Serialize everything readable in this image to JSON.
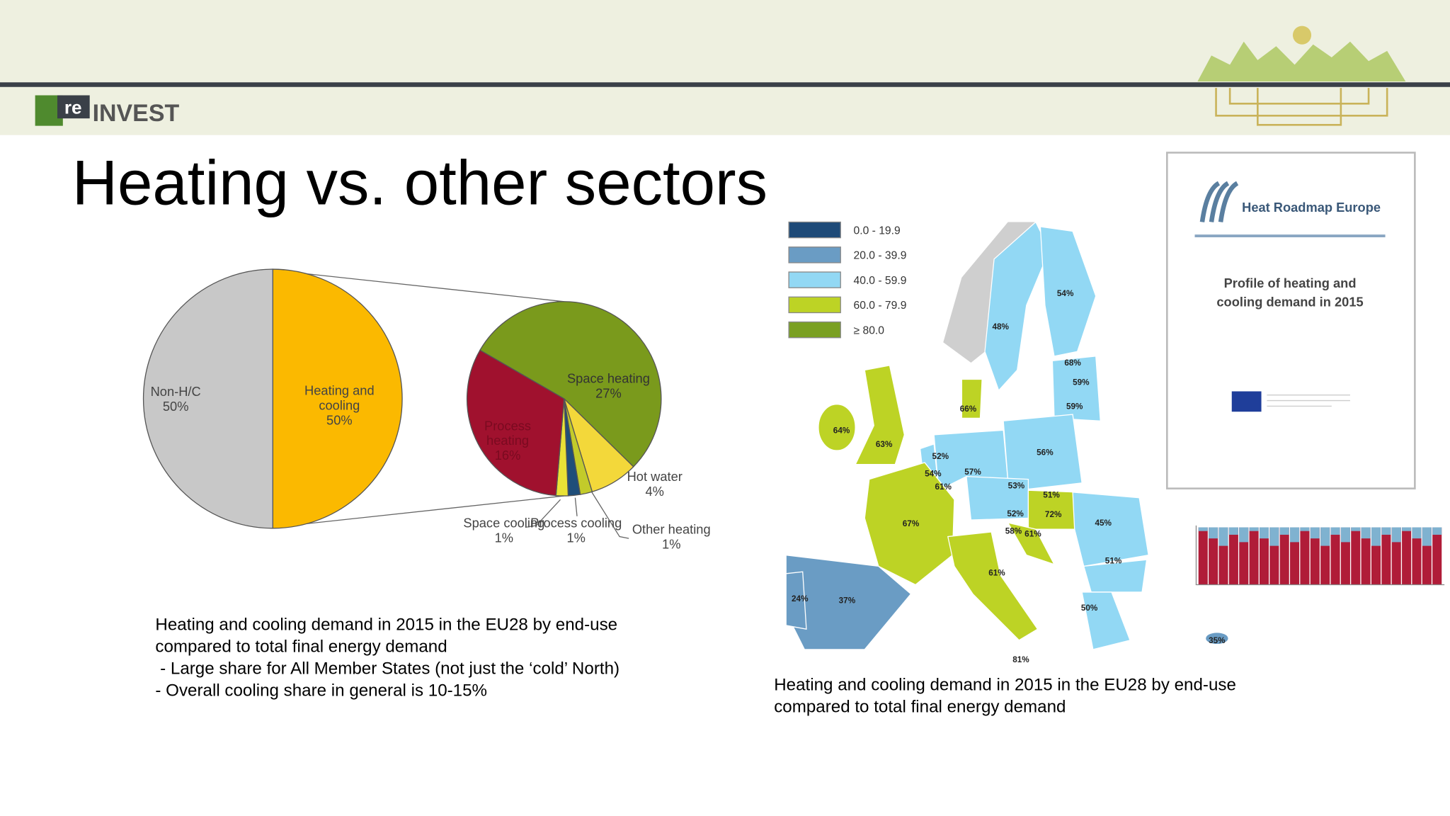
{
  "header": {
    "logo_prefix": "re",
    "logo_name": "INVEST"
  },
  "title": "Heating vs. other sectors",
  "chart_data": [
    {
      "type": "pie",
      "categories": [
        "Heating and cooling",
        "Non-H/C"
      ],
      "values": [
        50,
        50
      ],
      "value_labels": [
        "50%",
        "50%"
      ],
      "colors": [
        "#fbb900",
        "#c8c8c8"
      ]
    },
    {
      "type": "pie",
      "categories": [
        "Space heating",
        "Hot water",
        "Other heating",
        "Process cooling",
        "Space cooling",
        "Process heating"
      ],
      "values": [
        27,
        4,
        1,
        1,
        1,
        16
      ],
      "value_labels": [
        "27%",
        "4%",
        "1%",
        "1%",
        "1%",
        "16%"
      ],
      "colors": [
        "#7a9a1c",
        "#f3d83a",
        "#c3cb2a",
        "#1f4e79",
        "#e9e236",
        "#a0112e"
      ]
    }
  ],
  "caption_left": [
    "Heating and cooling demand in 2015 in the EU28 by end-use",
    "compared to total final energy demand",
    " - Large share for All Member States (not just the ‘cold’ North)",
    "- Overall cooling share in general is 10-15%"
  ],
  "caption_right": [
    "Heating and cooling demand in 2015 in the EU28 by end-use",
    "compared to total final energy demand"
  ],
  "map": {
    "legend": [
      {
        "label": "0.0 - 19.9",
        "color": "#1e4a78"
      },
      {
        "label": "20.0 - 39.9",
        "color": "#6a9cc4"
      },
      {
        "label": "40.0 - 59.9",
        "color": "#92d8f4"
      },
      {
        "label": "60.0 - 79.9",
        "color": "#bdd325"
      },
      {
        "label": "≥ 80.0",
        "color": "#7aa022"
      }
    ],
    "labels": [
      "54%",
      "48%",
      "68%",
      "59%",
      "59%",
      "66%",
      "64%",
      "63%",
      "52%",
      "54%",
      "61%",
      "57%",
      "56%",
      "53%",
      "51%",
      "52%",
      "72%",
      "45%",
      "58%",
      "61%",
      "67%",
      "51%",
      "61%",
      "24%",
      "37%",
      "50%",
      "35%",
      "81%"
    ]
  },
  "report": {
    "brand": "Heat Roadmap Europe",
    "title": "Profile of heating and cooling demand in 2015"
  }
}
